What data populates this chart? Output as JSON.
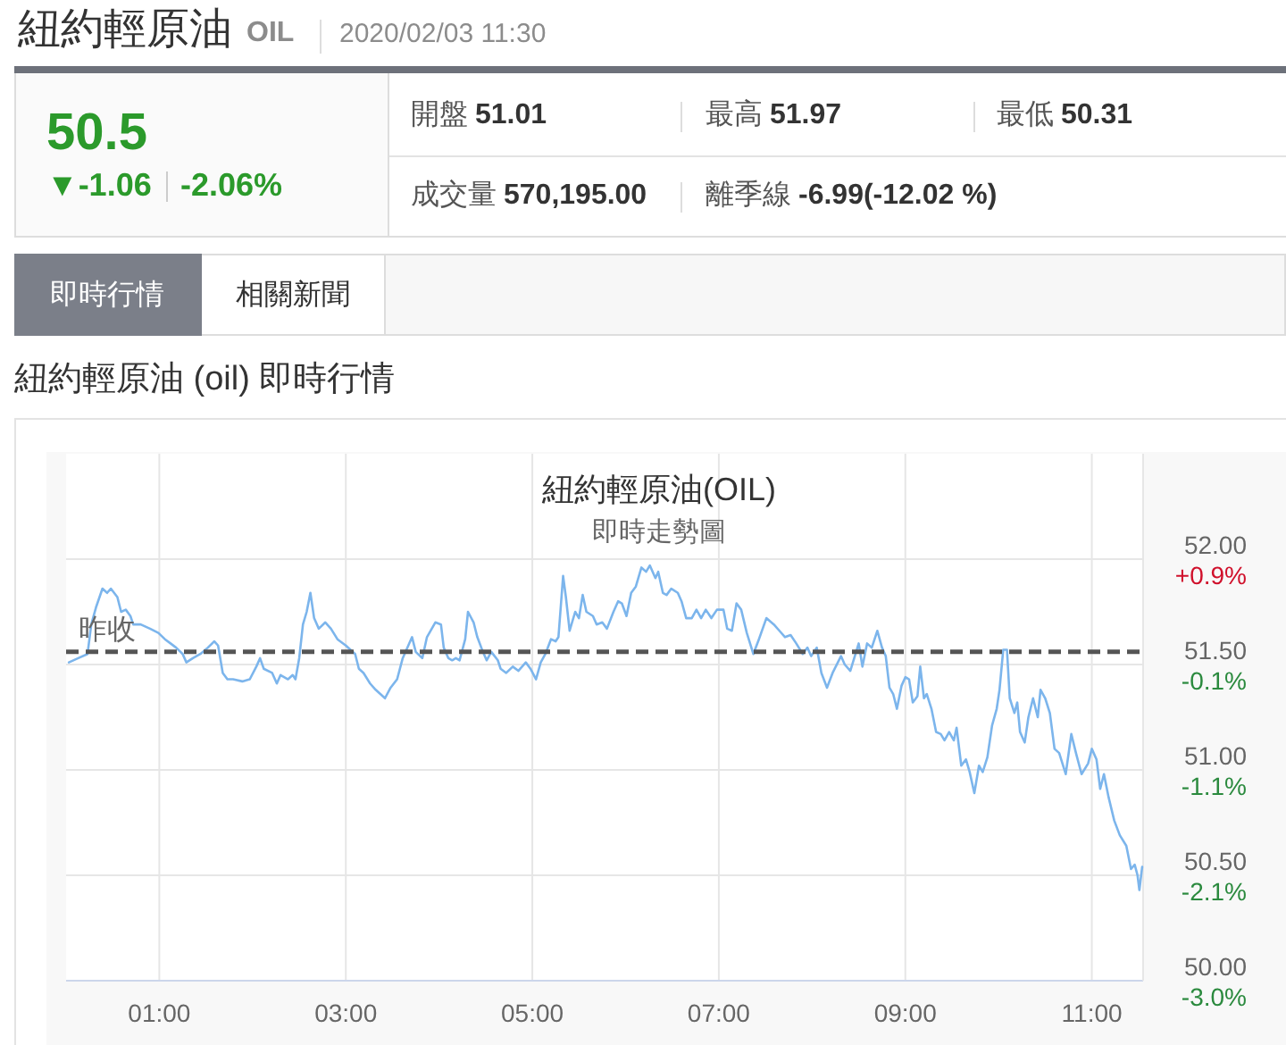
{
  "chart_data": [
    {
      "type": "other",
      "title": "紐約輕原油",
      "annotations": [
        "OIL",
        "2020/02/03 11:30",
        "50.5",
        "▼-1.06",
        "-2.06%",
        "開盤",
        "51.01",
        "最高",
        "51.97",
        "最低",
        "50.31",
        "成交量",
        "570,195.00",
        "離季線",
        "-6.99(-12.02 %)",
        "即時行情",
        "相關新聞",
        "紐約輕原油 (oil) 即時行情"
      ]
    },
    {
      "type": "line",
      "title": "紐約輕原油(OIL)",
      "subtitle": "即時走勢圖",
      "x": [
        0.03,
        0.13,
        0.23,
        0.27,
        0.32,
        0.39,
        0.44,
        0.48,
        0.55,
        0.59,
        0.64,
        0.69,
        0.72,
        0.8,
        0.9,
        0.99,
        1.06,
        1.12,
        1.18,
        1.25,
        1.29,
        1.36,
        1.44,
        1.52,
        1.59,
        1.63,
        1.68,
        1.73,
        1.79,
        1.89,
        1.97,
        2.04,
        2.08,
        2.12,
        2.21,
        2.26,
        2.3,
        2.38,
        2.43,
        2.46,
        2.5,
        2.54,
        2.58,
        2.62,
        2.66,
        2.71,
        2.78,
        2.84,
        2.91,
        3.0,
        3.1,
        3.14,
        3.19,
        3.26,
        3.32,
        3.42,
        3.48,
        3.55,
        3.61,
        3.71,
        3.75,
        3.82,
        3.87,
        3.96,
        4.02,
        4.05,
        4.1,
        4.14,
        4.18,
        4.22,
        4.28,
        4.31,
        4.37,
        4.41,
        4.47,
        4.51,
        4.56,
        4.63,
        4.66,
        4.72,
        4.79,
        4.85,
        4.93,
        4.98,
        5.04,
        5.09,
        5.14,
        5.2,
        5.25,
        5.28,
        5.33,
        5.36,
        5.4,
        5.46,
        5.5,
        5.54,
        5.58,
        5.65,
        5.69,
        5.75,
        5.8,
        5.87,
        5.92,
        5.96,
        6.01,
        6.06,
        6.11,
        6.17,
        6.22,
        6.26,
        6.32,
        6.35,
        6.4,
        6.44,
        6.49,
        6.56,
        6.6,
        6.65,
        6.71,
        6.76,
        6.81,
        6.86,
        6.92,
        6.98,
        7.05,
        7.09,
        7.14,
        7.19,
        7.24,
        7.3,
        7.37,
        7.43,
        7.51,
        7.59,
        7.65,
        7.71,
        7.77,
        7.83,
        7.9,
        7.95,
        7.99,
        8.05,
        8.1,
        8.16,
        8.22,
        8.31,
        8.35,
        8.41,
        8.5,
        8.54,
        8.59,
        8.64,
        8.7,
        8.75,
        8.79,
        8.83,
        8.87,
        8.91,
        8.96,
        9.0,
        9.04,
        9.08,
        9.13,
        9.16,
        9.2,
        9.23,
        9.28,
        9.33,
        9.38,
        9.42,
        9.47,
        9.52,
        9.55,
        9.6,
        9.65,
        9.69,
        9.74,
        9.79,
        9.83,
        9.88,
        9.93,
        9.98,
        10.01,
        10.05,
        10.09,
        10.12,
        10.17,
        10.2,
        10.23,
        10.28,
        10.32,
        10.37,
        10.42,
        10.45,
        10.5,
        10.55,
        10.6,
        10.65,
        10.72,
        10.78,
        10.83,
        10.89,
        10.96,
        11.0,
        11.05,
        11.09,
        11.13,
        11.18,
        11.24,
        11.3,
        11.37,
        11.42,
        11.46,
        11.49,
        11.51,
        11.54
      ],
      "series": [
        {
          "color": "#7cb5ec",
          "values": [
            51.51,
            51.53,
            51.55,
            51.69,
            51.77,
            51.86,
            51.84,
            51.86,
            51.82,
            51.75,
            51.76,
            51.73,
            51.69,
            51.69,
            51.67,
            51.65,
            51.62,
            51.6,
            51.58,
            51.55,
            51.51,
            51.53,
            51.55,
            51.58,
            51.61,
            51.59,
            51.46,
            51.43,
            51.43,
            51.42,
            51.43,
            51.49,
            51.53,
            51.48,
            51.46,
            51.41,
            51.45,
            51.43,
            51.45,
            51.43,
            51.53,
            51.69,
            51.75,
            51.84,
            51.72,
            51.67,
            51.7,
            51.67,
            51.62,
            51.59,
            51.55,
            51.48,
            51.46,
            51.41,
            51.38,
            51.34,
            51.39,
            51.43,
            51.53,
            51.63,
            51.56,
            51.53,
            51.63,
            51.7,
            51.69,
            51.58,
            51.53,
            51.52,
            51.53,
            51.52,
            51.62,
            51.75,
            51.7,
            51.63,
            51.56,
            51.52,
            51.56,
            51.52,
            51.48,
            51.46,
            51.49,
            51.47,
            51.51,
            51.48,
            51.43,
            51.51,
            51.55,
            51.62,
            51.61,
            51.63,
            51.92,
            51.82,
            51.66,
            51.75,
            51.72,
            51.83,
            51.75,
            51.73,
            51.69,
            51.7,
            51.67,
            51.75,
            51.8,
            51.79,
            51.73,
            51.84,
            51.87,
            51.96,
            51.94,
            51.97,
            51.91,
            51.94,
            51.84,
            51.83,
            51.86,
            51.84,
            51.8,
            51.72,
            51.72,
            51.76,
            51.72,
            51.76,
            51.72,
            51.76,
            51.76,
            51.67,
            51.66,
            51.79,
            51.76,
            51.65,
            51.55,
            51.62,
            51.72,
            51.69,
            51.66,
            51.63,
            51.64,
            51.6,
            51.55,
            51.58,
            51.54,
            51.58,
            51.46,
            51.39,
            51.46,
            51.54,
            51.5,
            51.47,
            51.6,
            51.49,
            51.6,
            51.58,
            51.66,
            51.58,
            51.54,
            51.39,
            51.36,
            51.29,
            51.4,
            51.44,
            51.43,
            51.32,
            51.35,
            51.49,
            51.34,
            51.36,
            51.29,
            51.18,
            51.17,
            51.14,
            51.18,
            51.14,
            51.2,
            51.02,
            51.05,
            50.99,
            50.89,
            51.02,
            50.99,
            51.06,
            51.21,
            51.29,
            51.38,
            51.57,
            51.57,
            51.34,
            51.27,
            51.32,
            51.18,
            51.13,
            51.25,
            51.34,
            51.25,
            51.38,
            51.34,
            51.27,
            51.1,
            51.08,
            50.98,
            51.17,
            51.08,
            50.98,
            51.03,
            51.1,
            51.05,
            50.91,
            50.98,
            50.87,
            50.76,
            50.69,
            50.64,
            50.53,
            50.55,
            50.5,
            50.43,
            50.54
          ]
        }
      ],
      "xlim": [
        0,
        11.55
      ],
      "xticks": [
        {
          "value": 1,
          "label": "01:00"
        },
        {
          "value": 3,
          "label": "03:00"
        },
        {
          "value": 5,
          "label": "05:00"
        },
        {
          "value": 7,
          "label": "07:00"
        },
        {
          "value": 9,
          "label": "09:00"
        },
        {
          "value": 11,
          "label": "11:00"
        }
      ],
      "ylim": [
        50,
        52.5
      ],
      "yticks": [
        {
          "value": 50,
          "label": "50.00"
        },
        {
          "value": 50.5,
          "label": "50.50"
        },
        {
          "value": 51,
          "label": "51.00"
        },
        {
          "value": 51.5,
          "label": "51.50"
        },
        {
          "value": 52,
          "label": "52.00"
        }
      ],
      "y2lim": [
        -3.03,
        1.82
      ],
      "y2ticks": [
        {
          "value": -3.03,
          "label": "-3.0%"
        },
        {
          "value": -2.06,
          "label": "-2.1%"
        },
        {
          "value": -1.09,
          "label": "-1.1%"
        },
        {
          "value": -0.12,
          "label": "-0.1%"
        },
        {
          "value": 0.85,
          "label": "+0.9%"
        }
      ],
      "grid": true,
      "ref_lines": [
        {
          "axis": "y",
          "value": 51.56,
          "label": "昨收",
          "color": "#555555",
          "line_style": "dashed"
        }
      ]
    }
  ]
}
